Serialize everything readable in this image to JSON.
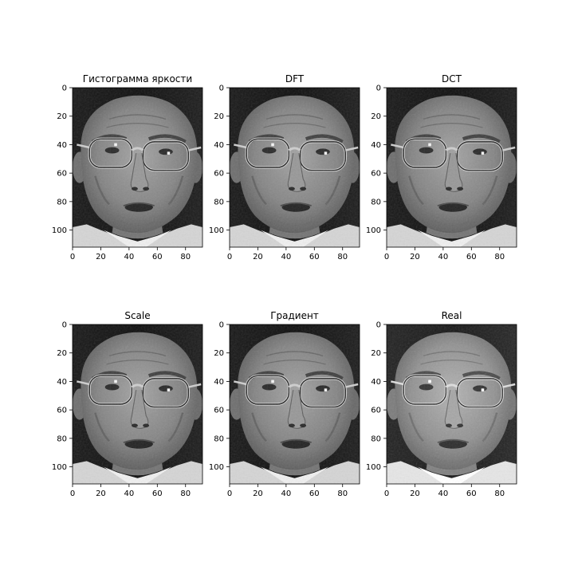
{
  "figure": {
    "background": "#ffffff",
    "subplots_grid": "2 rows x 3 columns"
  },
  "chart_data": [
    {
      "type": "image",
      "title": "Гистограмма яркости",
      "xlim": [
        0,
        92
      ],
      "ylim": [
        112,
        0
      ],
      "xticks": [
        0,
        20,
        40,
        60,
        80
      ],
      "yticks": [
        0,
        20,
        40,
        60,
        80,
        100
      ],
      "colormap": "gray",
      "variant": "processed"
    },
    {
      "type": "image",
      "title": "DFT",
      "xlim": [
        0,
        92
      ],
      "ylim": [
        112,
        0
      ],
      "xticks": [
        0,
        20,
        40,
        60,
        80
      ],
      "yticks": [
        0,
        20,
        40,
        60,
        80,
        100
      ],
      "colormap": "gray",
      "variant": "processed"
    },
    {
      "type": "image",
      "title": "DCT",
      "xlim": [
        0,
        92
      ],
      "ylim": [
        112,
        0
      ],
      "xticks": [
        0,
        20,
        40,
        60,
        80
      ],
      "yticks": [
        0,
        20,
        40,
        60,
        80,
        100
      ],
      "colormap": "gray",
      "variant": "processed"
    },
    {
      "type": "image",
      "title": "Scale",
      "xlim": [
        0,
        92
      ],
      "ylim": [
        112,
        0
      ],
      "xticks": [
        0,
        20,
        40,
        60,
        80
      ],
      "yticks": [
        0,
        20,
        40,
        60,
        80,
        100
      ],
      "colormap": "gray",
      "variant": "processed"
    },
    {
      "type": "image",
      "title": "Градиент",
      "xlim": [
        0,
        92
      ],
      "ylim": [
        112,
        0
      ],
      "xticks": [
        0,
        20,
        40,
        60,
        80
      ],
      "yticks": [
        0,
        20,
        40,
        60,
        80,
        100
      ],
      "colormap": "gray",
      "variant": "processed"
    },
    {
      "type": "image",
      "title": "Real",
      "xlim": [
        0,
        92
      ],
      "ylim": [
        112,
        0
      ],
      "xticks": [
        0,
        20,
        40,
        60,
        80
      ],
      "yticks": [
        0,
        20,
        40,
        60,
        80,
        100
      ],
      "colormap": "gray",
      "variant": "original"
    }
  ]
}
